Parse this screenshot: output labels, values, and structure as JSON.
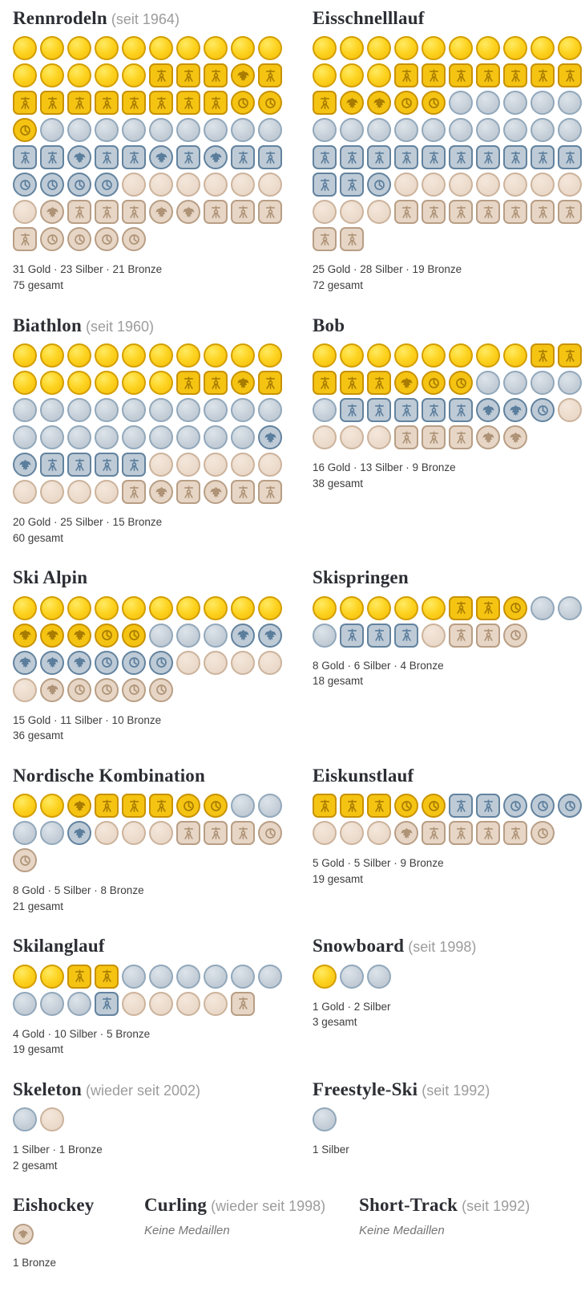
{
  "page": {
    "background": "#ffffff",
    "language": "de"
  },
  "medal_legend": {
    "g": "gold-plain",
    "gq": "gold-gdr-emblem-square",
    "ge": "gold-frg-eagle",
    "gc": "gold-united-team",
    "s": "silver-plain",
    "sq": "silver-gdr-emblem-square",
    "se": "silver-frg-eagle",
    "sc": "silver-united-team",
    "b": "bronze-plain",
    "bq": "bronze-gdr-emblem-square",
    "be": "bronze-frg-eagle",
    "bc": "bronze-united-team"
  },
  "colors": {
    "gold_fill": "#fdd321",
    "gold_border": "#d39e00",
    "gold_emblem": "#a87c00",
    "silver_fill": "#c7d0d9",
    "silver_border": "#92a8bb",
    "silver_emblem": "#5c7e9d",
    "bronze_fill": "#ecdccd",
    "bronze_border": "#ccb39c",
    "bronze_emblem": "#ae9377",
    "title": "#2c2e34",
    "subtitle": "#9c9c9c",
    "summary": "#3d3d3d",
    "no_medals": "#757575"
  },
  "layout": {
    "rows": [
      [
        "rennrodeln",
        "eisschnelllauf"
      ],
      [
        "biathlon",
        "bob"
      ],
      [
        "ski_alpin",
        "skispringen"
      ],
      [
        "nordische_kombination",
        "eiskunstlauf"
      ],
      [
        "skilanglauf",
        "snowboard"
      ],
      [
        "skeleton",
        "freestyle_ski"
      ]
    ],
    "bottom_row": [
      "eishockey",
      "curling",
      "short_track"
    ]
  },
  "sections": {
    "rennrodeln": {
      "title": "Rennrodeln",
      "subtitle": "(seit 1964)",
      "counts": {
        "gold": 31,
        "silber": 23,
        "bronze": 21,
        "gesamt": 75
      },
      "summary_line1": "31 Gold · 23 Silber · 21 Bronze",
      "summary_line2": "75 gesamt",
      "medals": [
        "g",
        "g",
        "g",
        "g",
        "g",
        "g",
        "g",
        "g",
        "g",
        "g",
        "g",
        "g",
        "g",
        "g",
        "g",
        "gq",
        "gq",
        "gq",
        "ge",
        "gq",
        "gq",
        "gq",
        "gq",
        "gq",
        "gq",
        "gq",
        "gq",
        "gq",
        "gc",
        "gc",
        "gc",
        "s",
        "s",
        "s",
        "s",
        "s",
        "s",
        "s",
        "s",
        "s",
        "sq",
        "sq",
        "se",
        "sq",
        "sq",
        "se",
        "sq",
        "se",
        "sq",
        "sq",
        "sc",
        "sc",
        "sc",
        "sc",
        "b",
        "b",
        "b",
        "b",
        "b",
        "b",
        "b",
        "be",
        "bq",
        "bq",
        "bq",
        "be",
        "be",
        "bq",
        "bq",
        "bq",
        "bq",
        "bc",
        "bc",
        "bc",
        "bc"
      ]
    },
    "eisschnelllauf": {
      "title": "Eisschnelllauf",
      "subtitle": "",
      "counts": {
        "gold": 25,
        "silber": 28,
        "bronze": 19,
        "gesamt": 72
      },
      "summary_line1": "25 Gold · 28 Silber · 19 Bronze",
      "summary_line2": "72 gesamt",
      "medals": [
        "g",
        "g",
        "g",
        "g",
        "g",
        "g",
        "g",
        "g",
        "g",
        "g",
        "g",
        "g",
        "g",
        "gq",
        "gq",
        "gq",
        "gq",
        "gq",
        "gq",
        "gq",
        "gq",
        "ge",
        "ge",
        "gc",
        "gc",
        "s",
        "s",
        "s",
        "s",
        "s",
        "s",
        "s",
        "s",
        "s",
        "s",
        "s",
        "s",
        "s",
        "s",
        "s",
        "sq",
        "sq",
        "sq",
        "sq",
        "sq",
        "sq",
        "sq",
        "sq",
        "sq",
        "sq",
        "sq",
        "sq",
        "sc",
        "b",
        "b",
        "b",
        "b",
        "b",
        "b",
        "b",
        "b",
        "b",
        "b",
        "bq",
        "bq",
        "bq",
        "bq",
        "bq",
        "bq",
        "bq",
        "bq",
        "bq"
      ]
    },
    "biathlon": {
      "title": "Biathlon",
      "subtitle": "(seit 1960)",
      "counts": {
        "gold": 20,
        "silber": 25,
        "bronze": 15,
        "gesamt": 60
      },
      "summary_line1": "20 Gold · 25 Silber · 15 Bronze",
      "summary_line2": "60 gesamt",
      "medals": [
        "g",
        "g",
        "g",
        "g",
        "g",
        "g",
        "g",
        "g",
        "g",
        "g",
        "g",
        "g",
        "g",
        "g",
        "g",
        "g",
        "gq",
        "gq",
        "ge",
        "gq",
        "s",
        "s",
        "s",
        "s",
        "s",
        "s",
        "s",
        "s",
        "s",
        "s",
        "s",
        "s",
        "s",
        "s",
        "s",
        "s",
        "s",
        "s",
        "s",
        "se",
        "se",
        "sq",
        "sq",
        "sq",
        "sq",
        "b",
        "b",
        "b",
        "b",
        "b",
        "b",
        "b",
        "b",
        "b",
        "bq",
        "be",
        "bq",
        "be",
        "bq",
        "bq"
      ]
    },
    "bob": {
      "title": "Bob",
      "subtitle": "",
      "counts": {
        "gold": 16,
        "silber": 13,
        "bronze": 9,
        "gesamt": 38
      },
      "summary_line1": "16 Gold · 13 Silber · 9 Bronze",
      "summary_line2": "38 gesamt",
      "medals": [
        "g",
        "g",
        "g",
        "g",
        "g",
        "g",
        "g",
        "g",
        "gq",
        "gq",
        "gq",
        "gq",
        "gq",
        "ge",
        "gc",
        "gc",
        "s",
        "s",
        "s",
        "s",
        "s",
        "sq",
        "sq",
        "sq",
        "sq",
        "sq",
        "se",
        "se",
        "sc",
        "b",
        "b",
        "b",
        "b",
        "bq",
        "bq",
        "bq",
        "be",
        "be"
      ]
    },
    "ski_alpin": {
      "title": "Ski Alpin",
      "subtitle": "",
      "counts": {
        "gold": 15,
        "silber": 11,
        "bronze": 10,
        "gesamt": 36
      },
      "summary_line1": "15 Gold · 11 Silber · 10 Bronze",
      "summary_line2": "36 gesamt",
      "medals": [
        "g",
        "g",
        "g",
        "g",
        "g",
        "g",
        "g",
        "g",
        "g",
        "g",
        "ge",
        "ge",
        "ge",
        "gc",
        "gc",
        "s",
        "s",
        "s",
        "se",
        "se",
        "se",
        "se",
        "se",
        "sc",
        "sc",
        "sc",
        "b",
        "b",
        "b",
        "b",
        "b",
        "be",
        "bc",
        "bc",
        "bc",
        "bc"
      ]
    },
    "skispringen": {
      "title": "Skispringen",
      "subtitle": "",
      "counts": {
        "gold": 8,
        "silber": 6,
        "bronze": 4,
        "gesamt": 18
      },
      "summary_line1": "8 Gold · 6 Silber · 4 Bronze",
      "summary_line2": "18 gesamt",
      "medals": [
        "g",
        "g",
        "g",
        "g",
        "g",
        "gq",
        "gq",
        "gc",
        "s",
        "s",
        "s",
        "sq",
        "sq",
        "sq",
        "b",
        "bq",
        "bq",
        "bc"
      ]
    },
    "nordische_kombination": {
      "title": "Nordische Kombination",
      "subtitle": "",
      "counts": {
        "gold": 8,
        "silber": 5,
        "bronze": 8,
        "gesamt": 21
      },
      "summary_line1": "8 Gold · 5 Silber · 8 Bronze",
      "summary_line2": "21 gesamt",
      "medals": [
        "g",
        "g",
        "ge",
        "gq",
        "gq",
        "gq",
        "gc",
        "gc",
        "s",
        "s",
        "s",
        "s",
        "se",
        "b",
        "b",
        "b",
        "bq",
        "bq",
        "bq",
        "bc",
        "bc"
      ]
    },
    "eiskunstlauf": {
      "title": "Eiskunstlauf",
      "subtitle": "",
      "counts": {
        "gold": 5,
        "silber": 5,
        "bronze": 9,
        "gesamt": 19
      },
      "summary_line1": "5 Gold · 5 Silber · 9 Bronze",
      "summary_line2": "19 gesamt",
      "medals": [
        "gq",
        "gq",
        "gq",
        "gc",
        "gc",
        "sq",
        "sq",
        "sc",
        "sc",
        "sc",
        "b",
        "b",
        "b",
        "be",
        "bq",
        "bq",
        "bq",
        "bq",
        "bc"
      ]
    },
    "skilanglauf": {
      "title": "Skilanglauf",
      "subtitle": "",
      "counts": {
        "gold": 4,
        "silber": 10,
        "bronze": 5,
        "gesamt": 19
      },
      "summary_line1": "4 Gold · 10 Silber · 5 Bronze",
      "summary_line2": "19 gesamt",
      "medals": [
        "g",
        "g",
        "gq",
        "gq",
        "s",
        "s",
        "s",
        "s",
        "s",
        "s",
        "s",
        "s",
        "s",
        "sq",
        "b",
        "b",
        "b",
        "b",
        "bq"
      ]
    },
    "snowboard": {
      "title": "Snowboard",
      "subtitle": "(seit 1998)",
      "counts": {
        "gold": 1,
        "silber": 2,
        "gesamt": 3
      },
      "summary_line1": "1 Gold · 2 Silber",
      "summary_line2": "3 gesamt",
      "medals": [
        "g",
        "s",
        "s"
      ]
    },
    "skeleton": {
      "title": "Skeleton",
      "subtitle": "(wieder seit 2002)",
      "counts": {
        "silber": 1,
        "bronze": 1,
        "gesamt": 2
      },
      "summary_line1": "1 Silber · 1 Bronze",
      "summary_line2": "2 gesamt",
      "medals": [
        "s",
        "b"
      ]
    },
    "freestyle_ski": {
      "title": "Freestyle-Ski",
      "subtitle": "(seit 1992)",
      "counts": {
        "silber": 1
      },
      "summary_line1": "1 Silber",
      "summary_line2": "",
      "medals": [
        "s"
      ]
    },
    "eishockey": {
      "title": "Eishockey",
      "subtitle": "",
      "counts": {
        "bronze": 1
      },
      "summary_line1": "1 Bronze",
      "summary_line2": "",
      "medals": [
        "be"
      ]
    },
    "curling": {
      "title": "Curling",
      "subtitle": "(wieder seit 1998)",
      "no_medals_text": "Keine Medaillen",
      "medals": []
    },
    "short_track": {
      "title": "Short-Track",
      "subtitle": "(seit 1992)",
      "no_medals_text": "Keine Medaillen",
      "medals": []
    }
  },
  "chart_data": {
    "type": "table",
    "title": "Deutsche Medaillen bei Olympischen Winterspielen nach Sportart",
    "categories": [
      "Rennrodeln",
      "Eisschnelllauf",
      "Biathlon",
      "Bob",
      "Ski Alpin",
      "Skispringen",
      "Nordische Kombination",
      "Eiskunstlauf",
      "Skilanglauf",
      "Snowboard",
      "Skeleton",
      "Freestyle-Ski",
      "Eishockey",
      "Curling",
      "Short-Track"
    ],
    "series": [
      {
        "name": "Gold",
        "values": [
          31,
          25,
          20,
          16,
          15,
          8,
          8,
          5,
          4,
          1,
          0,
          0,
          0,
          0,
          0
        ]
      },
      {
        "name": "Silber",
        "values": [
          23,
          28,
          25,
          13,
          11,
          6,
          5,
          5,
          10,
          2,
          1,
          1,
          0,
          0,
          0
        ]
      },
      {
        "name": "Bronze",
        "values": [
          21,
          19,
          15,
          9,
          10,
          4,
          8,
          9,
          5,
          0,
          1,
          0,
          1,
          0,
          0
        ]
      }
    ],
    "totals": [
      75,
      72,
      60,
      38,
      36,
      18,
      21,
      19,
      19,
      3,
      2,
      1,
      1,
      0,
      0
    ],
    "annotations": [
      "Rennrodeln seit 1964",
      "Biathlon seit 1960",
      "Snowboard seit 1998",
      "Skeleton wieder seit 2002",
      "Freestyle-Ski seit 1992",
      "Curling wieder seit 1998 keine Medaillen",
      "Short-Track seit 1992 keine Medaillen"
    ],
    "legend_position": "none",
    "grid": false
  }
}
